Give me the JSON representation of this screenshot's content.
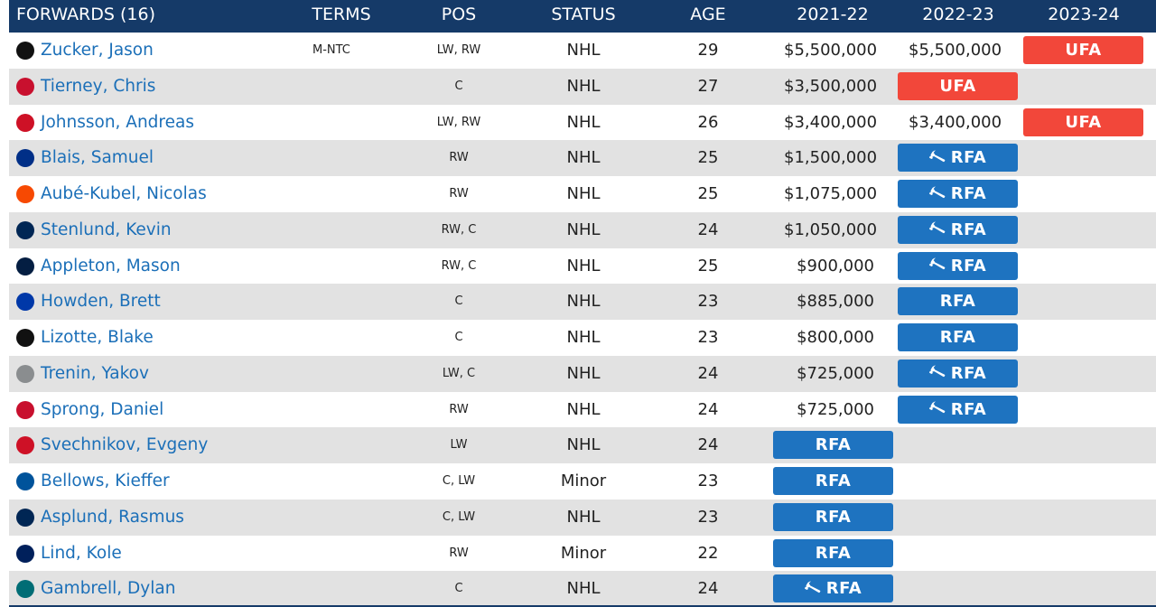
{
  "header": {
    "section": "FORWARDS (16)",
    "terms": "TERMS",
    "pos": "POS",
    "status": "STATUS",
    "age": "AGE",
    "y1": "2021-22",
    "y2": "2022-23",
    "y3": "2023-24"
  },
  "rows": [
    {
      "name": "Zucker, Jason",
      "team_icon": "penguins-logo-icon",
      "logo_color": "#111111",
      "terms": "M-NTC",
      "pos": "LW, RW",
      "status": "NHL",
      "age": "29",
      "s1": "$5,500,000",
      "s2": "$5,500,000",
      "badge": "UFA",
      "badge_type": "ufa",
      "badge_col": 3,
      "arb": false
    },
    {
      "name": "Tierney, Chris",
      "team_icon": "senators-logo-icon",
      "logo_color": "#c8102e",
      "terms": "",
      "pos": "C",
      "status": "NHL",
      "age": "27",
      "s1": "$3,500,000",
      "s2": "",
      "badge": "UFA",
      "badge_type": "ufa",
      "badge_col": 2,
      "arb": false
    },
    {
      "name": "Johnsson, Andreas",
      "team_icon": "devils-logo-icon",
      "logo_color": "#ce1126",
      "terms": "",
      "pos": "LW, RW",
      "status": "NHL",
      "age": "26",
      "s1": "$3,400,000",
      "s2": "$3,400,000",
      "badge": "UFA",
      "badge_type": "ufa",
      "badge_col": 3,
      "arb": false
    },
    {
      "name": "Blais, Samuel",
      "team_icon": "blues-logo-icon",
      "logo_color": "#002f87",
      "terms": "",
      "pos": "RW",
      "status": "NHL",
      "age": "25",
      "s1": "$1,500,000",
      "s2": "",
      "badge": "RFA",
      "badge_type": "rfa",
      "badge_col": 2,
      "arb": true
    },
    {
      "name": "Aubé-Kubel, Nicolas",
      "team_icon": "flyers-logo-icon",
      "logo_color": "#f74902",
      "terms": "",
      "pos": "RW",
      "status": "NHL",
      "age": "25",
      "s1": "$1,075,000",
      "s2": "",
      "badge": "RFA",
      "badge_type": "rfa",
      "badge_col": 2,
      "arb": true
    },
    {
      "name": "Stenlund, Kevin",
      "team_icon": "blue-jackets-logo-icon",
      "logo_color": "#002654",
      "terms": "",
      "pos": "RW, C",
      "status": "NHL",
      "age": "24",
      "s1": "$1,050,000",
      "s2": "",
      "badge": "RFA",
      "badge_type": "rfa",
      "badge_col": 2,
      "arb": true
    },
    {
      "name": "Appleton, Mason",
      "team_icon": "jets-logo-icon",
      "logo_color": "#041e42",
      "terms": "",
      "pos": "RW, C",
      "status": "NHL",
      "age": "25",
      "s1": "$900,000",
      "s2": "",
      "badge": "RFA",
      "badge_type": "rfa",
      "badge_col": 2,
      "arb": true
    },
    {
      "name": "Howden, Brett",
      "team_icon": "rangers-logo-icon",
      "logo_color": "#0038a8",
      "terms": "",
      "pos": "C",
      "status": "NHL",
      "age": "23",
      "s1": "$885,000",
      "s2": "",
      "badge": "RFA",
      "badge_type": "rfa",
      "badge_col": 2,
      "arb": false
    },
    {
      "name": "Lizotte, Blake",
      "team_icon": "kings-logo-icon",
      "logo_color": "#111111",
      "terms": "",
      "pos": "C",
      "status": "NHL",
      "age": "23",
      "s1": "$800,000",
      "s2": "",
      "badge": "RFA",
      "badge_type": "rfa",
      "badge_col": 2,
      "arb": false
    },
    {
      "name": "Trenin, Yakov",
      "team_icon": "predators-logo-icon",
      "logo_color": "#8a8d8f",
      "terms": "",
      "pos": "LW, C",
      "status": "NHL",
      "age": "24",
      "s1": "$725,000",
      "s2": "",
      "badge": "RFA",
      "badge_type": "rfa",
      "badge_col": 2,
      "arb": true
    },
    {
      "name": "Sprong, Daniel",
      "team_icon": "capitals-logo-icon",
      "logo_color": "#c8102e",
      "terms": "",
      "pos": "RW",
      "status": "NHL",
      "age": "24",
      "s1": "$725,000",
      "s2": "",
      "badge": "RFA",
      "badge_type": "rfa",
      "badge_col": 2,
      "arb": true
    },
    {
      "name": "Svechnikov, Evgeny",
      "team_icon": "red-wings-logo-icon",
      "logo_color": "#ce1126",
      "terms": "",
      "pos": "LW",
      "status": "NHL",
      "age": "24",
      "s1": "",
      "s2": "",
      "badge": "RFA",
      "badge_type": "rfa",
      "badge_col": 1,
      "arb": false
    },
    {
      "name": "Bellows, Kieffer",
      "team_icon": "islanders-logo-icon",
      "logo_color": "#00539b",
      "terms": "",
      "pos": "C, LW",
      "status": "Minor",
      "age": "23",
      "s1": "",
      "s2": "",
      "badge": "RFA",
      "badge_type": "rfa",
      "badge_col": 1,
      "arb": false
    },
    {
      "name": "Asplund, Rasmus",
      "team_icon": "sabres-logo-icon",
      "logo_color": "#002654",
      "terms": "",
      "pos": "C, LW",
      "status": "NHL",
      "age": "23",
      "s1": "",
      "s2": "",
      "badge": "RFA",
      "badge_type": "rfa",
      "badge_col": 1,
      "arb": false
    },
    {
      "name": "Lind, Kole",
      "team_icon": "canucks-logo-icon",
      "logo_color": "#00205b",
      "terms": "",
      "pos": "RW",
      "status": "Minor",
      "age": "22",
      "s1": "",
      "s2": "",
      "badge": "RFA",
      "badge_type": "rfa",
      "badge_col": 1,
      "arb": false
    },
    {
      "name": "Gambrell, Dylan",
      "team_icon": "sharks-logo-icon",
      "logo_color": "#006d75",
      "terms": "",
      "pos": "C",
      "status": "NHL",
      "age": "24",
      "s1": "",
      "s2": "",
      "badge": "RFA",
      "badge_type": "rfa",
      "badge_col": 1,
      "arb": true
    }
  ],
  "arb_icon": "gavel-icon",
  "colors": {
    "header_bg": "#153a68",
    "ufa": "#f2473a",
    "rfa": "#1e73c0",
    "link": "#1b6fb8"
  }
}
